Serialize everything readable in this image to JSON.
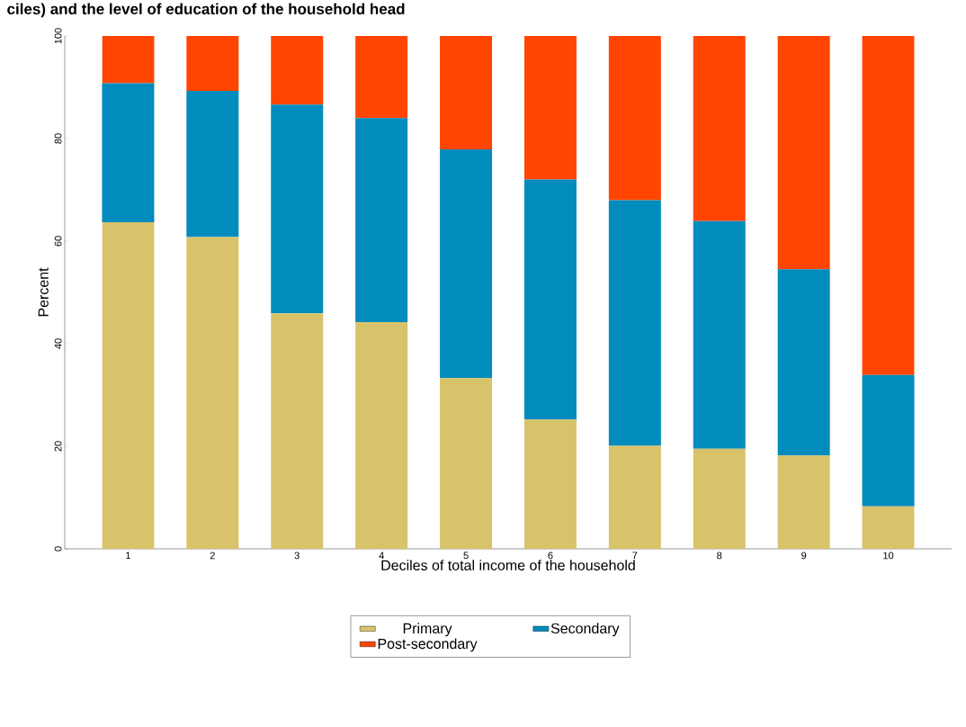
{
  "chart_data": {
    "type": "bar",
    "stacked": true,
    "title": "ciles) and the level of education of the household head",
    "xlabel": "Deciles of total income of the household",
    "ylabel": "Percent",
    "categories": [
      "1",
      "2",
      "3",
      "4",
      "5",
      "6",
      "7",
      "8",
      "9",
      "10"
    ],
    "series": [
      {
        "name": "Primary",
        "color": "#d9c36a",
        "values": [
          63.7,
          60.8,
          45.9,
          44.2,
          33.3,
          25.2,
          20.1,
          19.5,
          18.2,
          8.3
        ]
      },
      {
        "name": "Secondary",
        "color": "#028bbd",
        "values": [
          27.1,
          28.5,
          40.7,
          39.8,
          44.6,
          46.8,
          47.9,
          44.4,
          36.3,
          25.6
        ]
      },
      {
        "name": "Post-secondary",
        "color": "#ff4500",
        "values": [
          9.2,
          10.7,
          13.4,
          16.0,
          22.1,
          28.0,
          32.0,
          36.1,
          45.5,
          66.1
        ]
      }
    ],
    "ylim": [
      0,
      100
    ],
    "yticks": [
      0,
      20,
      40,
      60,
      80,
      100
    ],
    "grid": false,
    "legend": "bottom"
  }
}
